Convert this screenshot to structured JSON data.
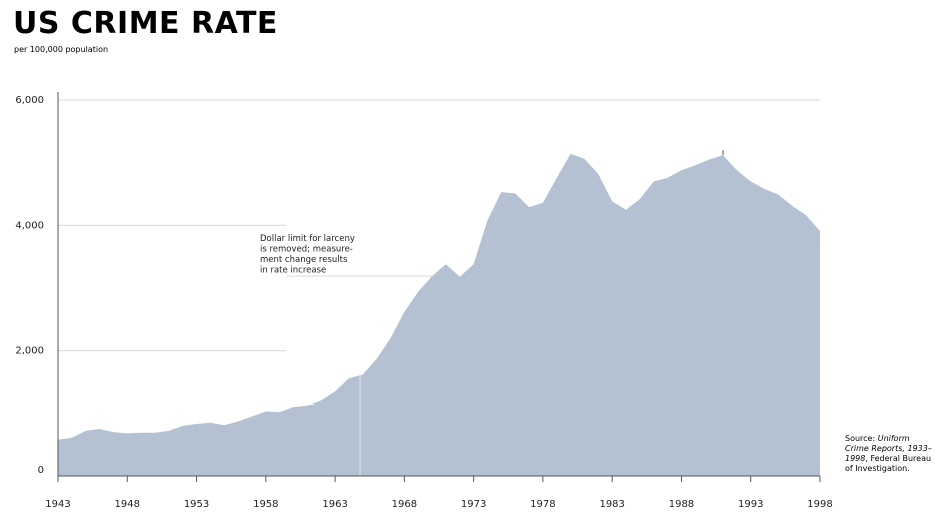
{
  "chart_data": {
    "type": "area",
    "title": "US CRIME RATE",
    "subtitle": "per 100,000 population",
    "xlabel": "",
    "ylabel": "",
    "xlim": [
      1943,
      1998
    ],
    "ylim": [
      0,
      6000
    ],
    "x_ticks": [
      "1943",
      "1948",
      "1953",
      "1958",
      "1963",
      "1968",
      "1973",
      "1978",
      "1983",
      "1988",
      "1993",
      "1998"
    ],
    "y_ticks": [
      "0",
      "2,000",
      "4,000",
      "6,000"
    ],
    "color": "#b3c1d3",
    "series": [
      {
        "name": "Crime rate",
        "x": [
          1943,
          1944,
          1945,
          1946,
          1947,
          1948,
          1949,
          1950,
          1951,
          1952,
          1953,
          1954,
          1955,
          1956,
          1957,
          1958,
          1959,
          1960,
          1961,
          1962,
          1963,
          1964,
          1965,
          1966,
          1967,
          1968,
          1969,
          1970,
          1971,
          1972,
          1973,
          1974,
          1975,
          1976,
          1977,
          1978,
          1979,
          1980,
          1981,
          1982,
          1983,
          1984,
          1985,
          1986,
          1987,
          1988,
          1989,
          1990,
          1991,
          1992,
          1993,
          1994,
          1995,
          1996,
          1997,
          1998
        ],
        "values": [
          580,
          610,
          720,
          750,
          700,
          680,
          690,
          690,
          720,
          800,
          830,
          850,
          810,
          870,
          950,
          1030,
          1020,
          1100,
          1120,
          1210,
          1350,
          1560,
          1620,
          1870,
          2200,
          2620,
          2940,
          3190,
          3380,
          3180,
          3380,
          4080,
          4530,
          4510,
          4290,
          4360,
          4760,
          5140,
          5060,
          4820,
          4380,
          4250,
          4420,
          4700,
          4760,
          4880,
          4960,
          5050,
          5120,
          4880,
          4700,
          4580,
          4490,
          4310,
          4160,
          3910
        ]
      }
    ],
    "annotations": {
      "larceny_note": [
        "Dollar limit for larceny",
        "is removed; measure-",
        "ment change results",
        "in rate increase"
      ]
    }
  },
  "source": {
    "prefix": "Source: ",
    "title": "Uniform Crime Reports, 1933–1998",
    "suffix": ", Federal Bureau of Investigation."
  }
}
